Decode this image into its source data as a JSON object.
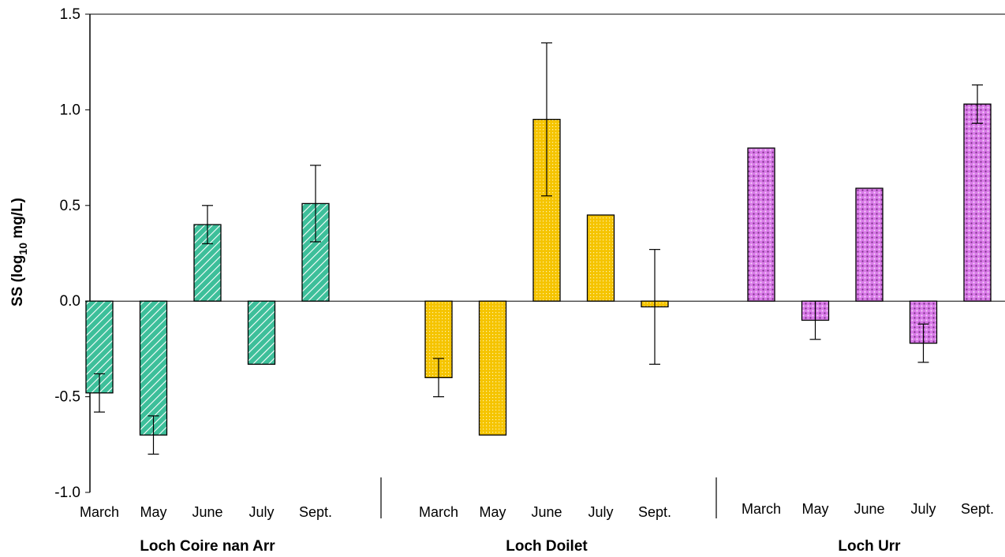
{
  "chart_data": {
    "type": "bar",
    "title": "",
    "ylabel": {
      "prefix": "SS (log",
      "sub": "10",
      "suffix": " mg/L)"
    },
    "ylim": [
      -1.0,
      1.5
    ],
    "yticks": [
      "-1.0",
      "-0.5",
      "0.0",
      "0.5",
      "1.0",
      "1.5"
    ],
    "grid": false,
    "groups": [
      {
        "name": "Loch Coire nan Arr",
        "color": "#3dbf9a",
        "pattern": "diagonal-stripes",
        "categories": [
          "March",
          "May",
          "June",
          "July",
          "Sept."
        ],
        "values": [
          -0.48,
          -0.7,
          0.4,
          -0.33,
          0.51
        ],
        "errors": [
          0.1,
          0.1,
          0.1,
          null,
          0.2
        ]
      },
      {
        "name": "Loch Doilet",
        "color": "#f5c400",
        "pattern": "fine-grid",
        "categories": [
          "March",
          "May",
          "June",
          "July",
          "Sept."
        ],
        "values": [
          -0.4,
          -0.7,
          0.95,
          0.45,
          -0.03
        ],
        "errors": [
          0.1,
          null,
          0.4,
          null,
          0.3
        ]
      },
      {
        "name": "Loch Urr",
        "color": "#d97ae8",
        "pattern": "dots",
        "categories": [
          "March",
          "May",
          "June",
          "July",
          "Sept."
        ],
        "values": [
          0.8,
          -0.1,
          0.59,
          -0.22,
          1.03
        ],
        "errors": [
          null,
          0.1,
          null,
          0.1,
          0.1
        ]
      }
    ]
  }
}
